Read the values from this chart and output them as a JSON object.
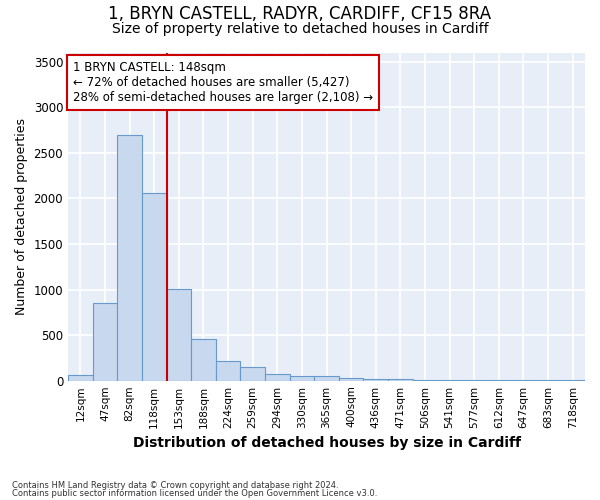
{
  "title_line1": "1, BRYN CASTELL, RADYR, CARDIFF, CF15 8RA",
  "title_line2": "Size of property relative to detached houses in Cardiff",
  "xlabel": "Distribution of detached houses by size in Cardiff",
  "ylabel": "Number of detached properties",
  "categories": [
    "12sqm",
    "47sqm",
    "82sqm",
    "118sqm",
    "153sqm",
    "188sqm",
    "224sqm",
    "259sqm",
    "294sqm",
    "330sqm",
    "365sqm",
    "400sqm",
    "436sqm",
    "471sqm",
    "506sqm",
    "541sqm",
    "577sqm",
    "612sqm",
    "647sqm",
    "683sqm",
    "718sqm"
  ],
  "values": [
    60,
    850,
    2700,
    2060,
    1010,
    460,
    215,
    150,
    75,
    55,
    55,
    30,
    20,
    15,
    10,
    5,
    4,
    3,
    2,
    2,
    2
  ],
  "bar_color": "#c8d8ee",
  "bar_edge_color": "#6699cc",
  "vline_color": "#cc0000",
  "annotation_title": "1 BRYN CASTELL: 148sqm",
  "annotation_line1": "← 72% of detached houses are smaller (5,427)",
  "annotation_line2": "28% of semi-detached houses are larger (2,108) →",
  "annotation_box_edgecolor": "#cc0000",
  "ylim": [
    0,
    3600
  ],
  "yticks": [
    0,
    500,
    1000,
    1500,
    2000,
    2500,
    3000,
    3500
  ],
  "footnote1": "Contains HM Land Registry data © Crown copyright and database right 2024.",
  "footnote2": "Contains public sector information licensed under the Open Government Licence v3.0.",
  "plot_bg_color": "#e8eef8",
  "fig_bg_color": "#ffffff",
  "grid_color": "#ffffff",
  "title_fontsize": 12,
  "subtitle_fontsize": 10,
  "vline_bin_index": 4
}
